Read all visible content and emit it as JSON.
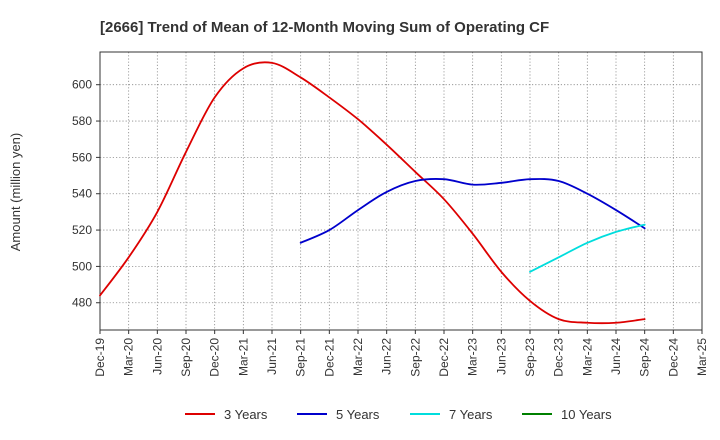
{
  "chart_data": {
    "type": "line",
    "title": "[2666]  Trend of Mean of 12-Month Moving Sum of Operating CF",
    "xlabel": "",
    "ylabel": "Amount (million yen)",
    "ylim": [
      465,
      618
    ],
    "yticks": [
      480,
      500,
      520,
      540,
      560,
      580,
      600
    ],
    "categories": [
      "Dec-19",
      "Mar-20",
      "Jun-20",
      "Sep-20",
      "Dec-20",
      "Mar-21",
      "Jun-21",
      "Sep-21",
      "Dec-21",
      "Mar-22",
      "Jun-22",
      "Sep-22",
      "Dec-22",
      "Mar-23",
      "Jun-23",
      "Sep-23",
      "Dec-23",
      "Mar-24",
      "Jun-24",
      "Sep-24",
      "Dec-24",
      "Mar-25"
    ],
    "grid": true,
    "legend_position": "bottom",
    "series": [
      {
        "name": "3 Years",
        "color": "#dd0000",
        "values": [
          484,
          505,
          530,
          563,
          593,
          609,
          612,
          604,
          593,
          581,
          567,
          552,
          537,
          518,
          497,
          481,
          471,
          469,
          469,
          471,
          null,
          null
        ]
      },
      {
        "name": "5 Years",
        "color": "#0000cc",
        "values": [
          null,
          null,
          null,
          null,
          null,
          null,
          null,
          513,
          520,
          531,
          541,
          547,
          548,
          545,
          546,
          548,
          547,
          540,
          531,
          521,
          null,
          null
        ]
      },
      {
        "name": "7 Years",
        "color": "#00dddd",
        "values": [
          null,
          null,
          null,
          null,
          null,
          null,
          null,
          null,
          null,
          null,
          null,
          null,
          null,
          null,
          null,
          497,
          505,
          513,
          519,
          523,
          null,
          null
        ]
      },
      {
        "name": "10 Years",
        "color": "#008000",
        "values": [
          null,
          null,
          null,
          null,
          null,
          null,
          null,
          null,
          null,
          null,
          null,
          null,
          null,
          null,
          null,
          null,
          null,
          null,
          null,
          null,
          null,
          null
        ]
      }
    ]
  }
}
